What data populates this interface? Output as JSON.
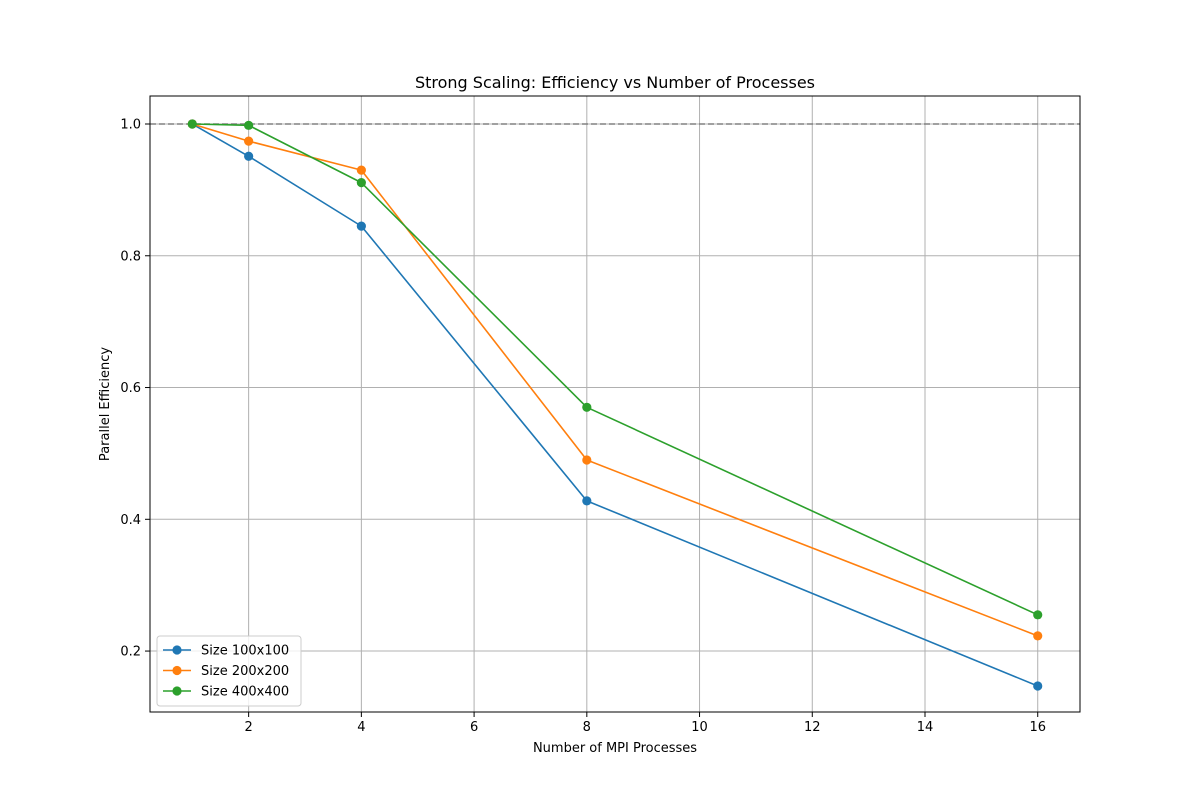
{
  "chart_data": {
    "type": "line",
    "title": "Strong Scaling: Efficiency vs Number of Processes",
    "xlabel": "Number of MPI Processes",
    "ylabel": "Parallel Efficiency",
    "xlim": [
      0.25,
      16.75
    ],
    "ylim": [
      0.1075,
      1.0425
    ],
    "xticks": [
      2,
      4,
      6,
      8,
      10,
      12,
      14,
      16
    ],
    "yticks": [
      0.2,
      0.4,
      0.6,
      0.8,
      1.0
    ],
    "ytick_labels": [
      "0.2",
      "0.4",
      "0.6",
      "0.8",
      "1.0"
    ],
    "grid": true,
    "reference_line": {
      "y": 1.0,
      "style": "dashed",
      "color": "#808080"
    },
    "legend_position": "lower-left",
    "x": [
      1,
      2,
      4,
      8,
      16
    ],
    "series": [
      {
        "name": "Size 100x100",
        "color": "#1f77b4",
        "values": [
          1.0,
          0.951,
          0.845,
          0.428,
          0.147
        ]
      },
      {
        "name": "Size 200x200",
        "color": "#ff7f0e",
        "values": [
          1.0,
          0.974,
          0.93,
          0.49,
          0.223
        ]
      },
      {
        "name": "Size 400x400",
        "color": "#2ca02c",
        "values": [
          1.0,
          0.998,
          0.911,
          0.57,
          0.255
        ]
      }
    ]
  }
}
